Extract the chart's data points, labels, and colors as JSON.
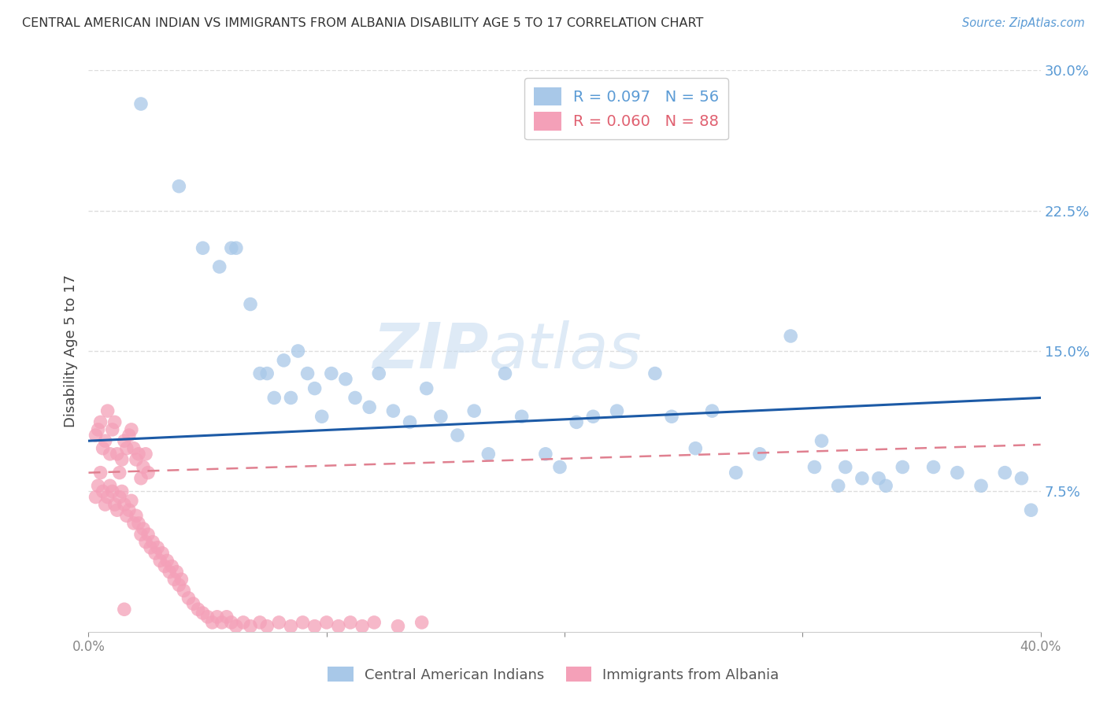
{
  "title": "CENTRAL AMERICAN INDIAN VS IMMIGRANTS FROM ALBANIA DISABILITY AGE 5 TO 17 CORRELATION CHART",
  "source": "Source: ZipAtlas.com",
  "ylabel": "Disability Age 5 to 17",
  "xlim": [
    0.0,
    0.4
  ],
  "ylim": [
    0.0,
    0.3
  ],
  "blue_R": 0.097,
  "blue_N": 56,
  "pink_R": 0.06,
  "pink_N": 88,
  "blue_color": "#A8C8E8",
  "pink_color": "#F4A0B8",
  "trend_blue_color": "#1C5AA6",
  "trend_pink_color": "#E08090",
  "watermark_zip": "ZIP",
  "watermark_atlas": "atlas",
  "background_color": "#FFFFFF",
  "grid_color": "#DDDDDD",
  "blue_x": [
    0.022,
    0.038,
    0.048,
    0.055,
    0.06,
    0.062,
    0.068,
    0.072,
    0.075,
    0.078,
    0.082,
    0.085,
    0.088,
    0.092,
    0.095,
    0.098,
    0.102,
    0.108,
    0.112,
    0.118,
    0.122,
    0.128,
    0.135,
    0.142,
    0.148,
    0.155,
    0.162,
    0.168,
    0.175,
    0.182,
    0.192,
    0.198,
    0.205,
    0.212,
    0.222,
    0.238,
    0.245,
    0.255,
    0.262,
    0.272,
    0.282,
    0.295,
    0.308,
    0.318,
    0.332,
    0.342,
    0.355,
    0.365,
    0.375,
    0.385,
    0.392,
    0.396,
    0.305,
    0.315,
    0.325,
    0.335
  ],
  "blue_y": [
    0.282,
    0.238,
    0.205,
    0.195,
    0.205,
    0.205,
    0.175,
    0.138,
    0.138,
    0.125,
    0.145,
    0.125,
    0.15,
    0.138,
    0.13,
    0.115,
    0.138,
    0.135,
    0.125,
    0.12,
    0.138,
    0.118,
    0.112,
    0.13,
    0.115,
    0.105,
    0.118,
    0.095,
    0.138,
    0.115,
    0.095,
    0.088,
    0.112,
    0.115,
    0.118,
    0.138,
    0.115,
    0.098,
    0.118,
    0.085,
    0.095,
    0.158,
    0.102,
    0.088,
    0.082,
    0.088,
    0.088,
    0.085,
    0.078,
    0.085,
    0.082,
    0.065,
    0.088,
    0.078,
    0.082,
    0.078
  ],
  "pink_x": [
    0.003,
    0.004,
    0.005,
    0.006,
    0.007,
    0.008,
    0.009,
    0.01,
    0.011,
    0.012,
    0.013,
    0.014,
    0.015,
    0.016,
    0.017,
    0.018,
    0.019,
    0.02,
    0.021,
    0.022,
    0.023,
    0.024,
    0.025,
    0.003,
    0.004,
    0.005,
    0.006,
    0.007,
    0.008,
    0.009,
    0.01,
    0.011,
    0.012,
    0.013,
    0.014,
    0.015,
    0.016,
    0.017,
    0.018,
    0.019,
    0.02,
    0.021,
    0.022,
    0.023,
    0.024,
    0.025,
    0.026,
    0.027,
    0.028,
    0.029,
    0.03,
    0.031,
    0.032,
    0.033,
    0.034,
    0.035,
    0.036,
    0.037,
    0.038,
    0.039,
    0.04,
    0.042,
    0.044,
    0.046,
    0.048,
    0.05,
    0.052,
    0.054,
    0.056,
    0.058,
    0.06,
    0.062,
    0.065,
    0.068,
    0.072,
    0.075,
    0.08,
    0.085,
    0.09,
    0.095,
    0.1,
    0.105,
    0.11,
    0.115,
    0.12,
    0.13,
    0.14,
    0.015
  ],
  "pink_y": [
    0.105,
    0.108,
    0.112,
    0.098,
    0.102,
    0.118,
    0.095,
    0.108,
    0.112,
    0.095,
    0.085,
    0.092,
    0.102,
    0.098,
    0.105,
    0.108,
    0.098,
    0.092,
    0.095,
    0.082,
    0.088,
    0.095,
    0.085,
    0.072,
    0.078,
    0.085,
    0.075,
    0.068,
    0.072,
    0.078,
    0.075,
    0.068,
    0.065,
    0.072,
    0.075,
    0.068,
    0.062,
    0.065,
    0.07,
    0.058,
    0.062,
    0.058,
    0.052,
    0.055,
    0.048,
    0.052,
    0.045,
    0.048,
    0.042,
    0.045,
    0.038,
    0.042,
    0.035,
    0.038,
    0.032,
    0.035,
    0.028,
    0.032,
    0.025,
    0.028,
    0.022,
    0.018,
    0.015,
    0.012,
    0.01,
    0.008,
    0.005,
    0.008,
    0.005,
    0.008,
    0.005,
    0.003,
    0.005,
    0.003,
    0.005,
    0.003,
    0.005,
    0.003,
    0.005,
    0.003,
    0.005,
    0.003,
    0.005,
    0.003,
    0.005,
    0.003,
    0.005,
    0.012
  ],
  "blue_trend_x": [
    0.0,
    0.4
  ],
  "blue_trend_y": [
    0.102,
    0.125
  ],
  "pink_trend_x": [
    0.0,
    0.4
  ],
  "pink_trend_y": [
    0.085,
    0.1
  ]
}
